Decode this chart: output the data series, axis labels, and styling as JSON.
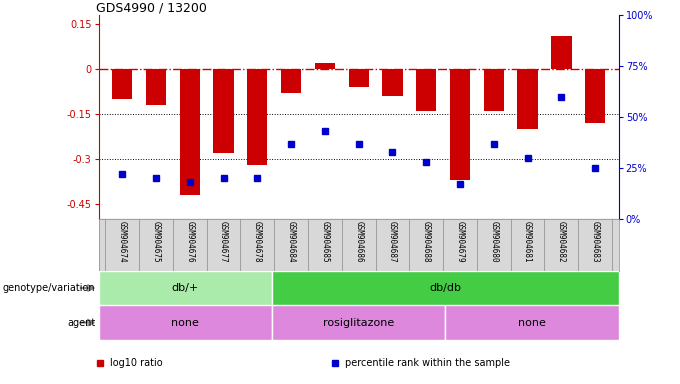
{
  "title": "GDS4990 / 13200",
  "samples": [
    "GSM904674",
    "GSM904675",
    "GSM904676",
    "GSM904677",
    "GSM904678",
    "GSM904684",
    "GSM904685",
    "GSM904686",
    "GSM904687",
    "GSM904688",
    "GSM904679",
    "GSM904680",
    "GSM904681",
    "GSM904682",
    "GSM904683"
  ],
  "log10_ratio": [
    -0.1,
    -0.12,
    -0.42,
    -0.28,
    -0.32,
    -0.08,
    0.02,
    -0.06,
    -0.09,
    -0.14,
    -0.37,
    -0.14,
    -0.2,
    0.11,
    -0.18
  ],
  "percentile_rank": [
    22,
    20,
    18,
    20,
    20,
    37,
    43,
    37,
    33,
    28,
    17,
    37,
    30,
    60,
    25
  ],
  "genotype_groups": [
    {
      "label": "db/+",
      "start": 0,
      "end": 5,
      "color": "#aaeaaa"
    },
    {
      "label": "db/db",
      "start": 5,
      "end": 15,
      "color": "#44cc44"
    }
  ],
  "agent_groups": [
    {
      "label": "none",
      "start": 0,
      "end": 5
    },
    {
      "label": "rosiglitazone",
      "start": 5,
      "end": 10
    },
    {
      "label": "none",
      "start": 10,
      "end": 15
    }
  ],
  "bar_color": "#cc0000",
  "dot_color": "#0000cc",
  "agent_color": "#dd88dd",
  "ylim_left": [
    -0.5,
    0.18
  ],
  "ylim_right": [
    0,
    100
  ],
  "left_ticks": [
    0.15,
    0.0,
    -0.15,
    -0.3,
    -0.45
  ],
  "left_ticklabels": [
    "0.15",
    "0",
    "-0.15",
    "-0.3",
    "-0.45"
  ],
  "right_ticks": [
    0,
    25,
    50,
    75,
    100
  ],
  "right_ticklabels": [
    "0%",
    "25%",
    "50%",
    "75%",
    "100%"
  ],
  "hlines_dotted": [
    -0.15,
    -0.3
  ],
  "legend_items": [
    {
      "color": "#cc0000",
      "label": "log10 ratio"
    },
    {
      "color": "#0000cc",
      "label": "percentile rank within the sample"
    }
  ]
}
